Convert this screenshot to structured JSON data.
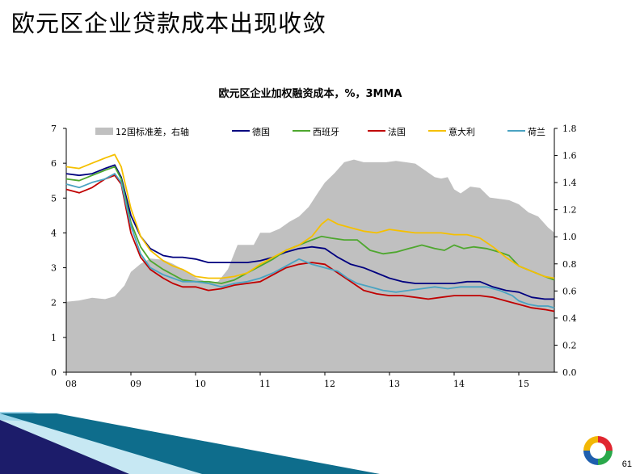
{
  "slide": {
    "title": "欧元区企业贷款成本出现收敛",
    "page_number": "61"
  },
  "chart_data": {
    "type": "line",
    "title": "欧元区企业加权融资成本，%，3MMA",
    "x_ticks": [
      "08",
      "09",
      "10",
      "11",
      "12",
      "13",
      "14",
      "15"
    ],
    "xlim": [
      2008.0,
      2015.55
    ],
    "y_left": {
      "range": [
        0,
        7
      ],
      "ticks": [
        "0",
        "1",
        "2",
        "3",
        "4",
        "5",
        "6",
        "7"
      ]
    },
    "y_right": {
      "range": [
        0,
        1.8
      ],
      "ticks": [
        "0.0",
        "0.2",
        "0.4",
        "0.6",
        "0.8",
        "1.0",
        "1.2",
        "1.4",
        "1.6",
        "1.8"
      ]
    },
    "legend_position": "top",
    "area": {
      "name": "12国标准差，右轴",
      "axis": "right",
      "color": "#c0c0c0",
      "x": [
        2008.0,
        2008.2,
        2008.4,
        2008.6,
        2008.75,
        2008.9,
        2009.0,
        2009.15,
        2009.3,
        2009.5,
        2009.65,
        2009.8,
        2010.0,
        2010.2,
        2010.35,
        2010.5,
        2010.65,
        2010.75,
        2010.9,
        2011.0,
        2011.15,
        2011.3,
        2011.45,
        2011.6,
        2011.75,
        2011.9,
        2012.0,
        2012.15,
        2012.3,
        2012.45,
        2012.6,
        2012.8,
        2012.95,
        2013.1,
        2013.25,
        2013.4,
        2013.55,
        2013.7,
        2013.8,
        2013.9,
        2014.0,
        2014.1,
        2014.25,
        2014.4,
        2014.55,
        2014.7,
        2014.85,
        2015.0,
        2015.15,
        2015.3,
        2015.45,
        2015.55
      ],
      "values": [
        0.52,
        0.53,
        0.55,
        0.54,
        0.56,
        0.64,
        0.74,
        0.8,
        0.84,
        0.83,
        0.8,
        0.76,
        0.7,
        0.66,
        0.67,
        0.76,
        0.94,
        0.94,
        0.94,
        1.03,
        1.03,
        1.06,
        1.11,
        1.15,
        1.22,
        1.33,
        1.4,
        1.47,
        1.55,
        1.57,
        1.55,
        1.55,
        1.55,
        1.56,
        1.55,
        1.54,
        1.49,
        1.44,
        1.43,
        1.44,
        1.35,
        1.32,
        1.37,
        1.36,
        1.29,
        1.28,
        1.27,
        1.24,
        1.18,
        1.15,
        1.07,
        1.03
      ]
    },
    "series": [
      {
        "name": "德国",
        "color": "#00007f",
        "x": [
          2008.0,
          2008.2,
          2008.4,
          2008.6,
          2008.75,
          2008.85,
          2009.0,
          2009.15,
          2009.3,
          2009.5,
          2009.65,
          2009.8,
          2010.0,
          2010.2,
          2010.4,
          2010.6,
          2010.8,
          2011.0,
          2011.2,
          2011.4,
          2011.6,
          2011.8,
          2012.0,
          2012.2,
          2012.4,
          2012.6,
          2012.8,
          2013.0,
          2013.2,
          2013.4,
          2013.6,
          2013.8,
          2014.0,
          2014.2,
          2014.4,
          2014.6,
          2014.8,
          2015.0,
          2015.2,
          2015.4,
          2015.55
        ],
        "values": [
          5.7,
          5.65,
          5.7,
          5.85,
          5.95,
          5.6,
          4.5,
          3.9,
          3.55,
          3.35,
          3.3,
          3.3,
          3.25,
          3.15,
          3.15,
          3.15,
          3.15,
          3.2,
          3.3,
          3.45,
          3.55,
          3.6,
          3.55,
          3.3,
          3.1,
          3.0,
          2.85,
          2.7,
          2.6,
          2.55,
          2.55,
          2.55,
          2.55,
          2.6,
          2.6,
          2.45,
          2.35,
          2.3,
          2.15,
          2.1,
          2.1
        ]
      },
      {
        "name": "西班牙",
        "color": "#4ea72e",
        "x": [
          2008.0,
          2008.2,
          2008.4,
          2008.6,
          2008.75,
          2008.85,
          2009.0,
          2009.15,
          2009.3,
          2009.5,
          2009.65,
          2009.8,
          2010.0,
          2010.2,
          2010.4,
          2010.6,
          2010.8,
          2011.0,
          2011.2,
          2011.4,
          2011.6,
          2011.8,
          2011.95,
          2012.1,
          2012.3,
          2012.5,
          2012.7,
          2012.9,
          2013.1,
          2013.3,
          2013.5,
          2013.7,
          2013.85,
          2014.0,
          2014.15,
          2014.3,
          2014.5,
          2014.7,
          2014.85,
          2015.0,
          2015.2,
          2015.4,
          2015.55
        ],
        "values": [
          5.55,
          5.5,
          5.65,
          5.8,
          5.9,
          5.55,
          4.3,
          3.6,
          3.2,
          2.95,
          2.8,
          2.65,
          2.6,
          2.6,
          2.55,
          2.65,
          2.85,
          3.05,
          3.25,
          3.5,
          3.65,
          3.8,
          3.9,
          3.85,
          3.8,
          3.8,
          3.5,
          3.4,
          3.45,
          3.55,
          3.65,
          3.55,
          3.5,
          3.65,
          3.55,
          3.6,
          3.55,
          3.45,
          3.35,
          3.05,
          2.9,
          2.75,
          2.65
        ]
      },
      {
        "name": "法国",
        "color": "#c00000",
        "x": [
          2008.0,
          2008.2,
          2008.4,
          2008.6,
          2008.75,
          2008.85,
          2009.0,
          2009.15,
          2009.3,
          2009.5,
          2009.65,
          2009.8,
          2010.0,
          2010.2,
          2010.4,
          2010.6,
          2010.8,
          2011.0,
          2011.2,
          2011.4,
          2011.6,
          2011.8,
          2012.0,
          2012.2,
          2012.4,
          2012.6,
          2012.8,
          2013.0,
          2013.2,
          2013.4,
          2013.6,
          2013.8,
          2014.0,
          2014.2,
          2014.4,
          2014.6,
          2014.8,
          2015.0,
          2015.2,
          2015.4,
          2015.55
        ],
        "values": [
          5.25,
          5.15,
          5.3,
          5.55,
          5.65,
          5.4,
          4.0,
          3.3,
          2.95,
          2.7,
          2.55,
          2.45,
          2.45,
          2.35,
          2.4,
          2.5,
          2.55,
          2.6,
          2.8,
          3.0,
          3.1,
          3.15,
          3.1,
          2.85,
          2.6,
          2.35,
          2.25,
          2.2,
          2.2,
          2.15,
          2.1,
          2.15,
          2.2,
          2.2,
          2.2,
          2.15,
          2.05,
          1.95,
          1.85,
          1.8,
          1.75
        ]
      },
      {
        "name": "意大利",
        "color": "#f5c000",
        "x": [
          2008.0,
          2008.2,
          2008.4,
          2008.6,
          2008.75,
          2008.85,
          2009.0,
          2009.15,
          2009.3,
          2009.5,
          2009.65,
          2009.8,
          2010.0,
          2010.2,
          2010.4,
          2010.6,
          2010.8,
          2011.0,
          2011.2,
          2011.4,
          2011.6,
          2011.8,
          2011.95,
          2012.05,
          2012.2,
          2012.4,
          2012.6,
          2012.8,
          2013.0,
          2013.2,
          2013.4,
          2013.6,
          2013.8,
          2014.0,
          2014.2,
          2014.4,
          2014.6,
          2014.8,
          2015.0,
          2015.2,
          2015.4,
          2015.55
        ],
        "values": [
          5.9,
          5.85,
          6.0,
          6.15,
          6.25,
          5.9,
          4.7,
          3.9,
          3.5,
          3.2,
          3.05,
          2.95,
          2.75,
          2.7,
          2.7,
          2.75,
          2.85,
          3.1,
          3.3,
          3.5,
          3.65,
          3.9,
          4.25,
          4.4,
          4.25,
          4.15,
          4.05,
          4.0,
          4.1,
          4.05,
          4.0,
          4.0,
          4.0,
          3.95,
          3.95,
          3.85,
          3.6,
          3.3,
          3.05,
          2.9,
          2.75,
          2.7
        ]
      },
      {
        "name": "荷兰",
        "color": "#4aa3c2",
        "x": [
          2008.0,
          2008.2,
          2008.4,
          2008.6,
          2008.75,
          2008.85,
          2009.0,
          2009.15,
          2009.3,
          2009.5,
          2009.65,
          2009.8,
          2010.0,
          2010.2,
          2010.4,
          2010.6,
          2010.8,
          2011.0,
          2011.2,
          2011.4,
          2011.6,
          2011.8,
          2012.0,
          2012.2,
          2012.35,
          2012.5,
          2012.7,
          2012.9,
          2013.1,
          2013.3,
          2013.5,
          2013.7,
          2013.9,
          2014.1,
          2014.3,
          2014.5,
          2014.7,
          2014.9,
          2015.0,
          2015.15,
          2015.3,
          2015.45,
          2015.55
        ],
        "values": [
          5.4,
          5.3,
          5.45,
          5.55,
          5.7,
          5.45,
          4.2,
          3.4,
          3.0,
          2.8,
          2.7,
          2.6,
          2.6,
          2.55,
          2.45,
          2.55,
          2.6,
          2.7,
          2.85,
          3.05,
          3.25,
          3.1,
          3.0,
          2.9,
          2.7,
          2.55,
          2.45,
          2.35,
          2.3,
          2.35,
          2.4,
          2.45,
          2.4,
          2.45,
          2.45,
          2.45,
          2.35,
          2.2,
          2.05,
          1.95,
          1.9,
          1.9,
          1.85
        ]
      }
    ]
  }
}
